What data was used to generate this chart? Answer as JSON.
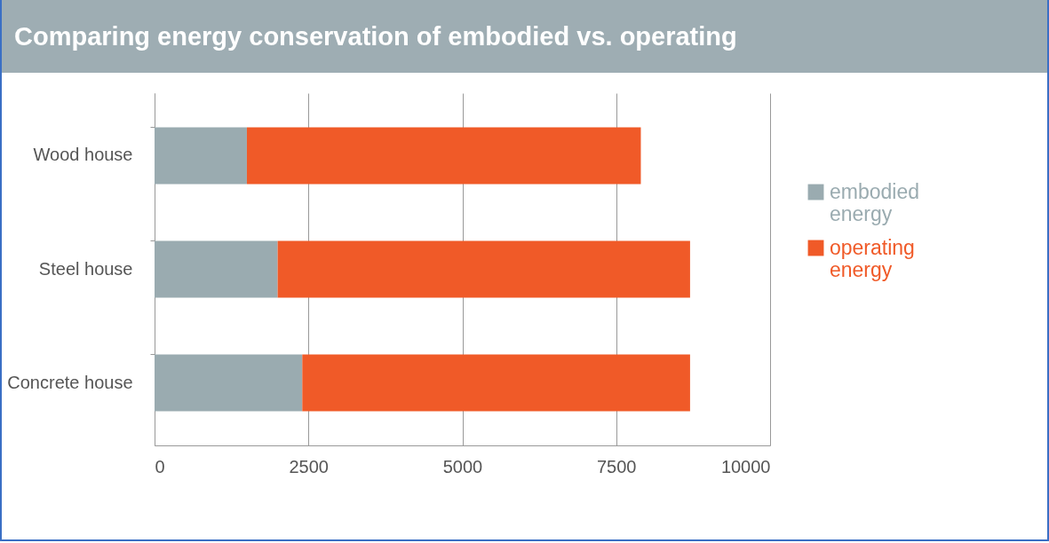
{
  "chart_data": {
    "type": "bar",
    "title": "Comparing energy conservation of embodied vs. operating",
    "categories": [
      "Wood house",
      "Steel house",
      "Concrete house"
    ],
    "orientation": "horizontal",
    "stacked": true,
    "series": [
      {
        "name": "embodied energy",
        "color": "#9aabb0",
        "values": [
          1500,
          2000,
          2400
        ]
      },
      {
        "name": "operating energy",
        "color": "#f05a28",
        "values": [
          6400,
          6700,
          6300
        ]
      }
    ],
    "xlim": [
      0,
      10000
    ],
    "xticks": [
      0,
      2500,
      5000,
      7500,
      10000
    ],
    "grid": "x",
    "legend": "right"
  }
}
